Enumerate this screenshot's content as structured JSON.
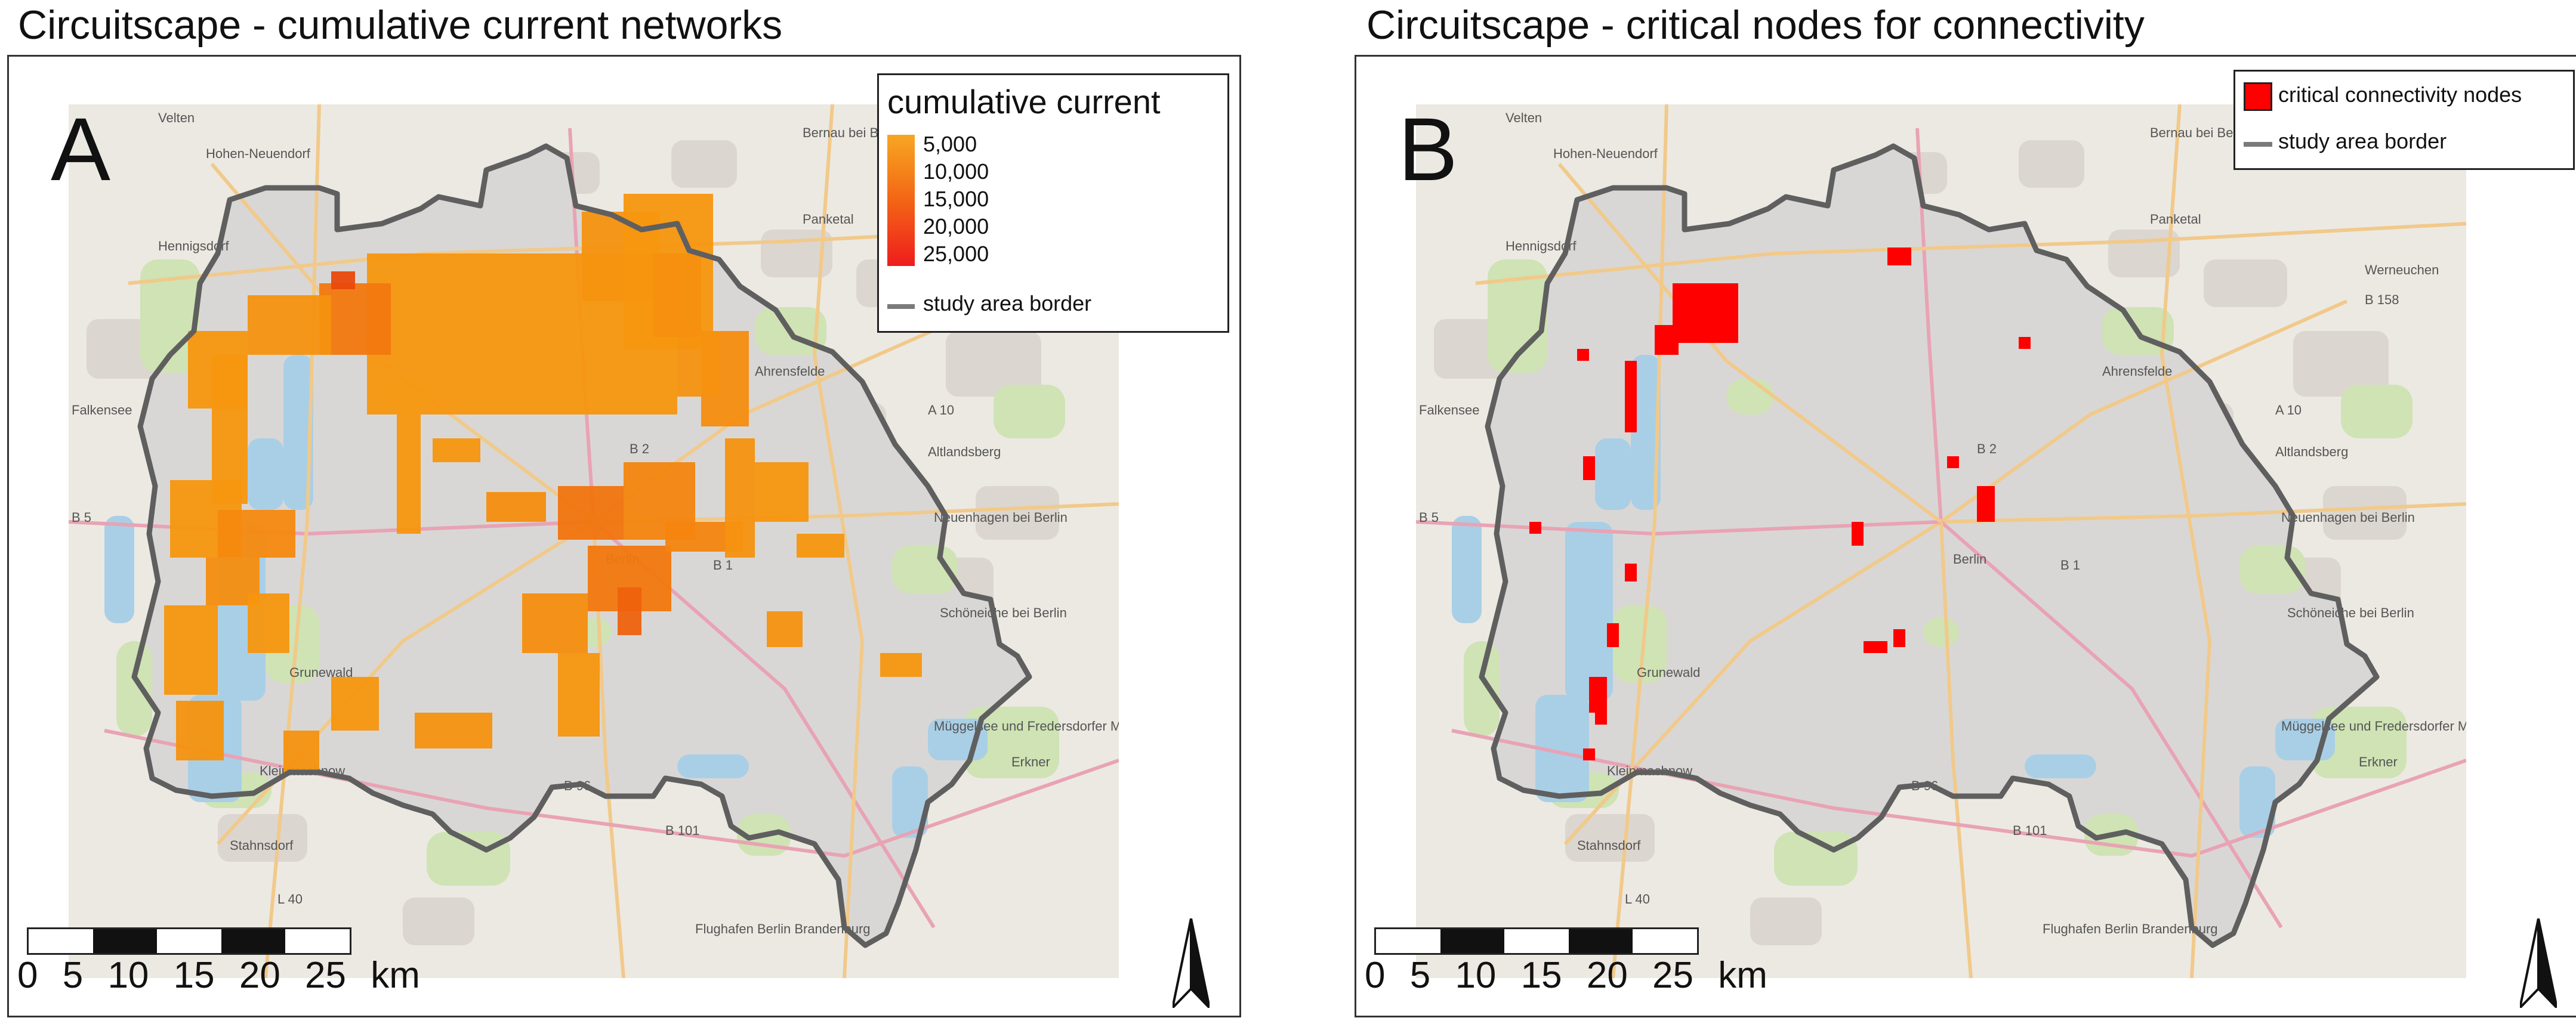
{
  "panels": [
    {
      "title": "Circuitscape - cumulative current networks",
      "letter": "A",
      "legend": {
        "title": "cumulative current",
        "entries": [
          "5,000",
          "10,000",
          "15,000",
          "20,000",
          "25,000"
        ],
        "ramp_colors": [
          "#f7a623",
          "#f5871b",
          "#f36515",
          "#f1411a",
          "#ee1c1c"
        ],
        "border_label": "study area border"
      },
      "scale_labels": [
        "0",
        "5",
        "10",
        "15",
        "20",
        "25 km"
      ]
    },
    {
      "title": "Circuitscape - critical nodes for connectivity",
      "letter": "B",
      "legend": {
        "node_label": "critical connectivity nodes",
        "node_color": "#ff0000",
        "border_label": "study area border"
      },
      "scale_labels": [
        "0",
        "5",
        "10",
        "15",
        "20",
        "25 km"
      ]
    }
  ],
  "basemap_labels": [
    "Velten",
    "Hohen-Neuendorf",
    "Bernau bei Berlin",
    "Panketal",
    "Hennigsdorf",
    "Werneuchen",
    "B 158",
    "Ahrensfelde",
    "Falkensee",
    "A 10",
    "Altlandsberg",
    "B 2",
    "Neuenhagen bei Berlin",
    "B 5",
    "B 1",
    "Berlin",
    "Schöneiche bei Berlin",
    "Grunewald",
    "Müggelsee und Fredersdorfer Mühlenfließ",
    "Erkner",
    "Kleinmachnow",
    "Stahnsdorf",
    "B 96",
    "B 101",
    "Flughafen Berlin Brandenburg",
    "L 40"
  ],
  "colors": {
    "current_orange": "#f7960f",
    "current_dark": "#e8400c",
    "critical_red": "#ff0000",
    "border_gray": "#5f5f5f",
    "forest_green": "#cfe3b4",
    "water_blue": "#a9cfe6"
  }
}
